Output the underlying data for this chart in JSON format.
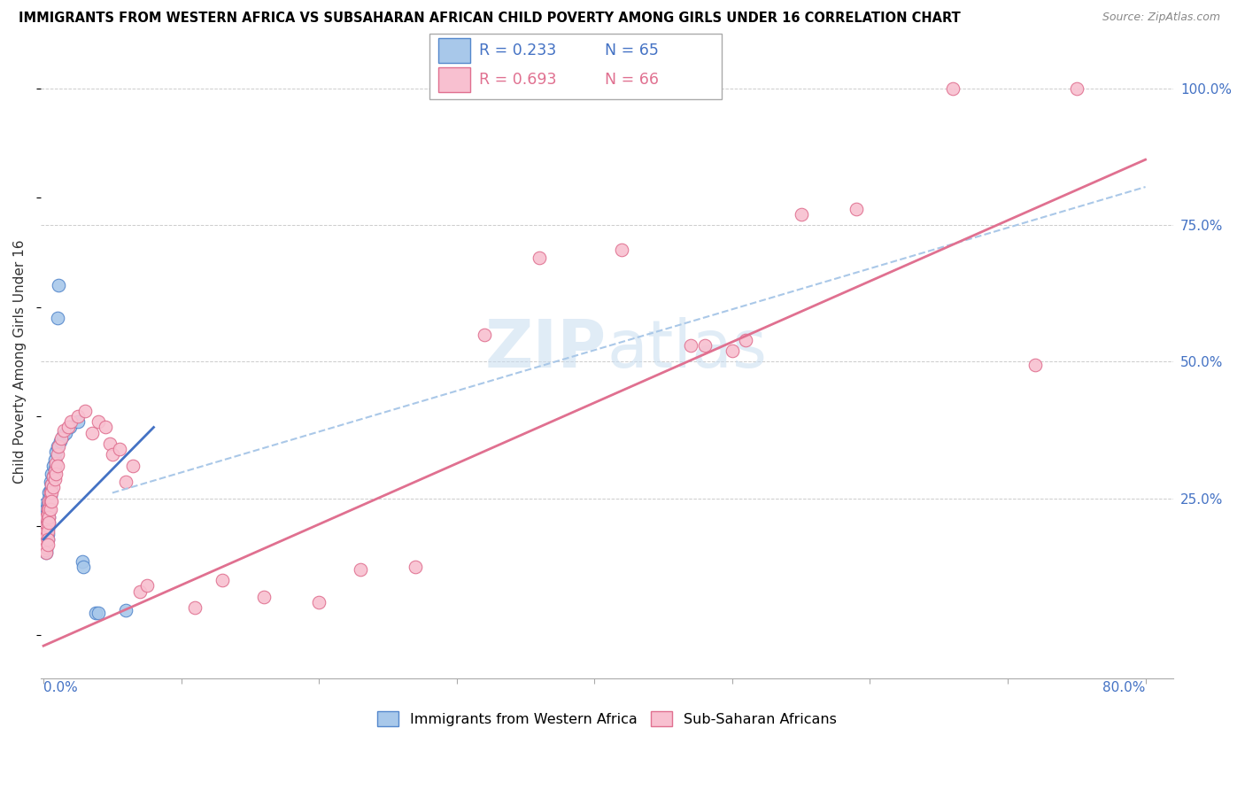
{
  "title": "IMMIGRANTS FROM WESTERN AFRICA VS SUBSAHARAN AFRICAN CHILD POVERTY AMONG GIRLS UNDER 16 CORRELATION CHART",
  "source": "Source: ZipAtlas.com",
  "ylabel": "Child Poverty Among Girls Under 16",
  "legend_label_blue": "Immigrants from Western Africa",
  "legend_label_pink": "Sub-Saharan Africans",
  "blue_color": "#a8c8ea",
  "blue_edge_color": "#5588cc",
  "pink_color": "#f8c0d0",
  "pink_edge_color": "#e07090",
  "blue_line_color": "#4472c4",
  "pink_line_color": "#e07090",
  "dash_line_color": "#aac8e8",
  "r_blue": 0.233,
  "n_blue": 65,
  "r_pink": 0.693,
  "n_pink": 66,
  "xlim": [
    -0.002,
    0.82
  ],
  "ylim": [
    -0.08,
    1.08
  ],
  "yticks": [
    0.0,
    0.25,
    0.5,
    0.75,
    1.0
  ],
  "ytick_labels": [
    "",
    "25.0%",
    "50.0%",
    "75.0%",
    "100.0%"
  ],
  "xticks": [
    0.0,
    0.1,
    0.2,
    0.3,
    0.4,
    0.5,
    0.6,
    0.7,
    0.8
  ],
  "blue_line": [
    [
      0.0,
      0.175
    ],
    [
      0.08,
      0.38
    ]
  ],
  "pink_line": [
    [
      0.0,
      -0.02
    ],
    [
      0.8,
      0.87
    ]
  ],
  "dash_line": [
    [
      0.05,
      0.26
    ],
    [
      0.8,
      0.82
    ]
  ],
  "blue_scatter": [
    [
      0.001,
      0.195
    ],
    [
      0.001,
      0.215
    ],
    [
      0.001,
      0.225
    ],
    [
      0.001,
      0.24
    ],
    [
      0.001,
      0.2
    ],
    [
      0.001,
      0.21
    ],
    [
      0.001,
      0.185
    ],
    [
      0.001,
      0.18
    ],
    [
      0.001,
      0.175
    ],
    [
      0.001,
      0.17
    ],
    [
      0.001,
      0.165
    ],
    [
      0.001,
      0.16
    ],
    [
      0.002,
      0.23
    ],
    [
      0.002,
      0.22
    ],
    [
      0.002,
      0.21
    ],
    [
      0.002,
      0.205
    ],
    [
      0.002,
      0.2
    ],
    [
      0.002,
      0.195
    ],
    [
      0.002,
      0.185
    ],
    [
      0.002,
      0.175
    ],
    [
      0.002,
      0.165
    ],
    [
      0.002,
      0.16
    ],
    [
      0.002,
      0.155
    ],
    [
      0.002,
      0.15
    ],
    [
      0.003,
      0.24
    ],
    [
      0.003,
      0.23
    ],
    [
      0.003,
      0.22
    ],
    [
      0.003,
      0.215
    ],
    [
      0.003,
      0.205
    ],
    [
      0.003,
      0.195
    ],
    [
      0.003,
      0.185
    ],
    [
      0.003,
      0.175
    ],
    [
      0.004,
      0.26
    ],
    [
      0.004,
      0.25
    ],
    [
      0.004,
      0.235
    ],
    [
      0.004,
      0.225
    ],
    [
      0.004,
      0.215
    ],
    [
      0.004,
      0.205
    ],
    [
      0.005,
      0.28
    ],
    [
      0.005,
      0.265
    ],
    [
      0.005,
      0.255
    ],
    [
      0.005,
      0.245
    ],
    [
      0.006,
      0.295
    ],
    [
      0.006,
      0.275
    ],
    [
      0.006,
      0.265
    ],
    [
      0.007,
      0.31
    ],
    [
      0.007,
      0.29
    ],
    [
      0.008,
      0.32
    ],
    [
      0.008,
      0.305
    ],
    [
      0.009,
      0.335
    ],
    [
      0.01,
      0.345
    ],
    [
      0.01,
      0.58
    ],
    [
      0.011,
      0.64
    ],
    [
      0.012,
      0.355
    ],
    [
      0.014,
      0.365
    ],
    [
      0.016,
      0.37
    ],
    [
      0.019,
      0.38
    ],
    [
      0.025,
      0.39
    ],
    [
      0.028,
      0.135
    ],
    [
      0.029,
      0.125
    ],
    [
      0.038,
      0.04
    ],
    [
      0.04,
      0.04
    ],
    [
      0.06,
      0.045
    ]
  ],
  "pink_scatter": [
    [
      0.001,
      0.185
    ],
    [
      0.001,
      0.175
    ],
    [
      0.001,
      0.165
    ],
    [
      0.001,
      0.155
    ],
    [
      0.002,
      0.215
    ],
    [
      0.002,
      0.2
    ],
    [
      0.002,
      0.19
    ],
    [
      0.002,
      0.18
    ],
    [
      0.002,
      0.17
    ],
    [
      0.002,
      0.16
    ],
    [
      0.002,
      0.15
    ],
    [
      0.003,
      0.23
    ],
    [
      0.003,
      0.22
    ],
    [
      0.003,
      0.21
    ],
    [
      0.003,
      0.2
    ],
    [
      0.003,
      0.19
    ],
    [
      0.003,
      0.175
    ],
    [
      0.003,
      0.165
    ],
    [
      0.004,
      0.245
    ],
    [
      0.004,
      0.23
    ],
    [
      0.004,
      0.215
    ],
    [
      0.004,
      0.205
    ],
    [
      0.005,
      0.26
    ],
    [
      0.005,
      0.245
    ],
    [
      0.005,
      0.23
    ],
    [
      0.006,
      0.275
    ],
    [
      0.006,
      0.26
    ],
    [
      0.006,
      0.245
    ],
    [
      0.007,
      0.29
    ],
    [
      0.007,
      0.27
    ],
    [
      0.008,
      0.3
    ],
    [
      0.008,
      0.285
    ],
    [
      0.009,
      0.315
    ],
    [
      0.009,
      0.295
    ],
    [
      0.01,
      0.33
    ],
    [
      0.01,
      0.31
    ],
    [
      0.011,
      0.345
    ],
    [
      0.013,
      0.36
    ],
    [
      0.015,
      0.375
    ],
    [
      0.018,
      0.38
    ],
    [
      0.02,
      0.39
    ],
    [
      0.025,
      0.4
    ],
    [
      0.03,
      0.41
    ],
    [
      0.035,
      0.37
    ],
    [
      0.04,
      0.39
    ],
    [
      0.045,
      0.38
    ],
    [
      0.048,
      0.35
    ],
    [
      0.05,
      0.33
    ],
    [
      0.055,
      0.34
    ],
    [
      0.06,
      0.28
    ],
    [
      0.065,
      0.31
    ],
    [
      0.07,
      0.08
    ],
    [
      0.075,
      0.09
    ],
    [
      0.11,
      0.05
    ],
    [
      0.13,
      0.1
    ],
    [
      0.16,
      0.07
    ],
    [
      0.2,
      0.06
    ],
    [
      0.23,
      0.12
    ],
    [
      0.27,
      0.125
    ],
    [
      0.32,
      0.55
    ],
    [
      0.36,
      0.69
    ],
    [
      0.42,
      0.705
    ],
    [
      0.47,
      0.53
    ],
    [
      0.48,
      0.53
    ],
    [
      0.5,
      0.52
    ],
    [
      0.51,
      0.54
    ],
    [
      0.55,
      0.77
    ],
    [
      0.59,
      0.78
    ],
    [
      0.66,
      1.0
    ],
    [
      0.75,
      1.0
    ],
    [
      0.72,
      0.495
    ]
  ]
}
